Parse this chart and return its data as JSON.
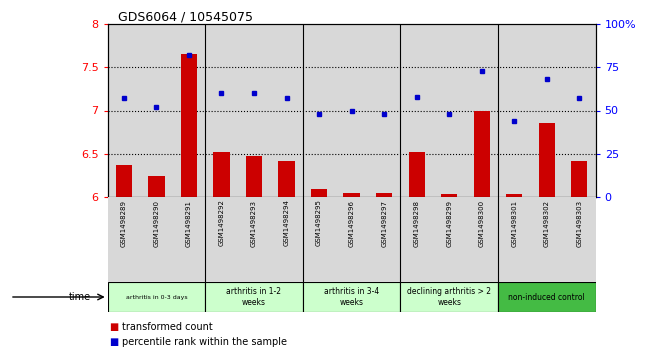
{
  "title": "GDS6064 / 10545075",
  "samples": [
    "GSM1498289",
    "GSM1498290",
    "GSM1498291",
    "GSM1498292",
    "GSM1498293",
    "GSM1498294",
    "GSM1498295",
    "GSM1498296",
    "GSM1498297",
    "GSM1498298",
    "GSM1498299",
    "GSM1498300",
    "GSM1498301",
    "GSM1498302",
    "GSM1498303"
  ],
  "transformed_count": [
    6.37,
    6.24,
    7.65,
    6.52,
    6.47,
    6.42,
    6.09,
    6.05,
    6.05,
    6.52,
    6.04,
    7.0,
    6.04,
    6.85,
    6.42
  ],
  "percentile_rank": [
    57,
    52,
    82,
    60,
    60,
    57,
    48,
    50,
    48,
    58,
    48,
    73,
    44,
    68,
    57
  ],
  "groups": [
    {
      "label": "arthritis in 0-3 days",
      "start": 0,
      "end": 3,
      "color": "#ccffcc",
      "small": true
    },
    {
      "label": "arthritis in 1-2\nweeks",
      "start": 3,
      "end": 6,
      "color": "#ccffcc",
      "small": false
    },
    {
      "label": "arthritis in 3-4\nweeks",
      "start": 6,
      "end": 9,
      "color": "#ccffcc",
      "small": false
    },
    {
      "label": "declining arthritis > 2\nweeks",
      "start": 9,
      "end": 12,
      "color": "#ccffcc",
      "small": false
    },
    {
      "label": "non-induced control",
      "start": 12,
      "end": 15,
      "color": "#44bb44",
      "small": false
    }
  ],
  "ylim_left": [
    6.0,
    8.0
  ],
  "ylim_right": [
    0,
    100
  ],
  "yticks_left": [
    6.0,
    6.5,
    7.0,
    7.5,
    8.0
  ],
  "yticks_right": [
    0,
    25,
    50,
    75,
    100
  ],
  "bar_color": "#cc0000",
  "dot_color": "#0000cc",
  "bar_bg_color": "#d8d8d8",
  "legend_red_label": "transformed count",
  "legend_blue_label": "percentile rank within the sample"
}
